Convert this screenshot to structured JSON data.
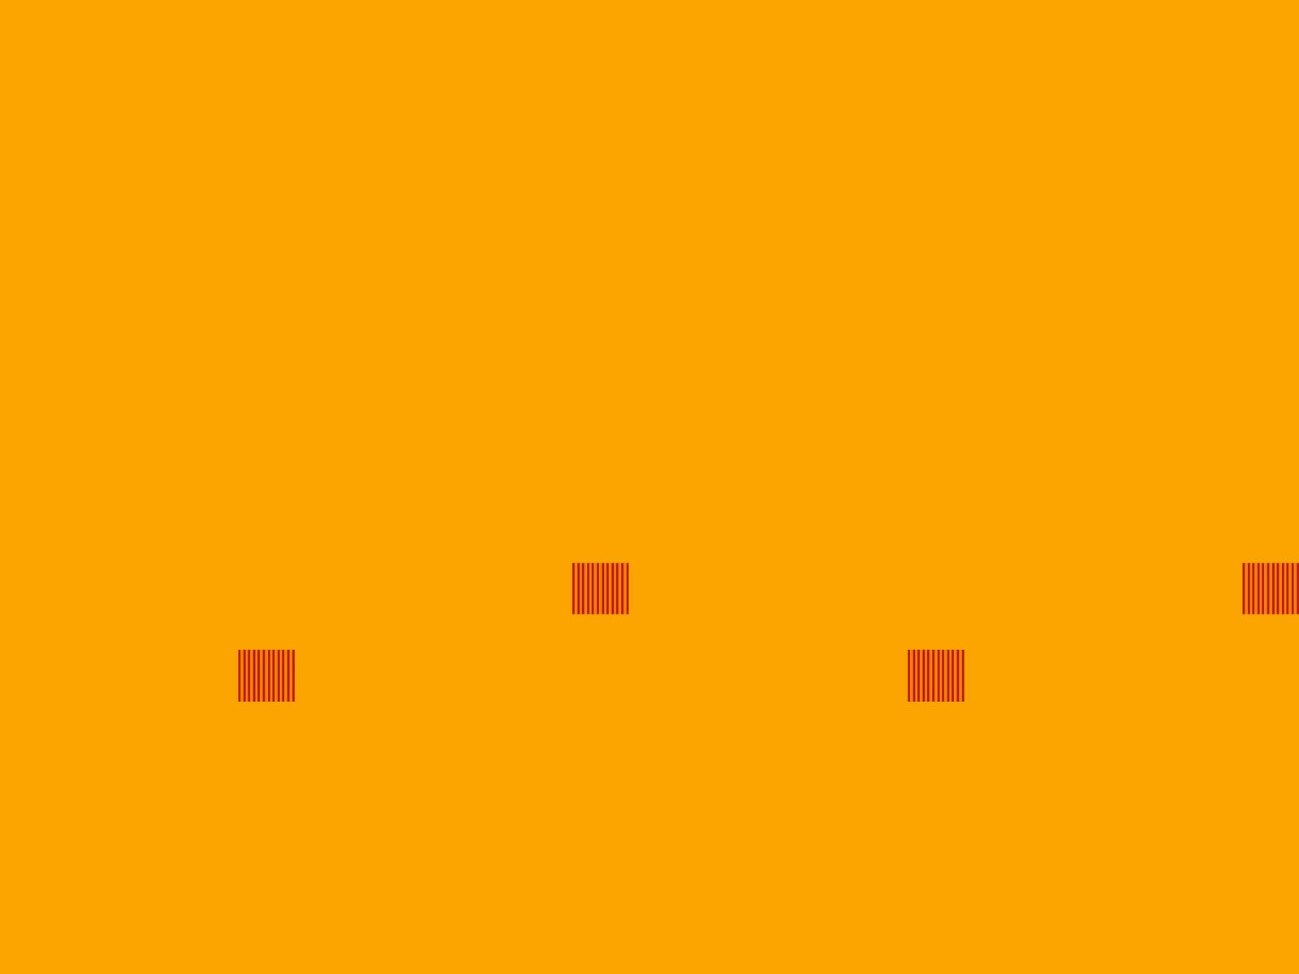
{
  "chart_data": {
    "type": "heatmap",
    "x": [
      0,
      321,
      324,
      328,
      331,
      334,
      337,
      341,
      344,
      347,
      350,
      354,
      357,
      361,
      364,
      367,
      370,
      374,
      377,
      380,
      383,
      387,
      390,
      394,
      397,
      771,
      774,
      778,
      781,
      784,
      787,
      791,
      794,
      797,
      800,
      804,
      807,
      811,
      814,
      817,
      820,
      824,
      827,
      830,
      833,
      837,
      840,
      844,
      847,
      1223,
      1226,
      1230,
      1233,
      1236,
      1239,
      1243,
      1246,
      1249,
      1252,
      1256,
      1259,
      1263,
      1266,
      1269,
      1272,
      1276,
      1279,
      1282,
      1285,
      1289,
      1292,
      1296,
      1299,
      1674,
      1677,
      1681,
      1684,
      1687,
      1690,
      1694,
      1697,
      1700,
      1703,
      1707,
      1710,
      1714,
      1717,
      1720,
      1723,
      1727,
      1730,
      1733,
      1736,
      1740,
      1743,
      1747,
      1750
    ],
    "y": [
      0,
      759,
      828,
      876,
      946,
      1313
    ],
    "z": [
      [
        0,
        0,
        0,
        0,
        0,
        0,
        0,
        0,
        0,
        0,
        0,
        0,
        0,
        0,
        0,
        0,
        0,
        0,
        0,
        0,
        0,
        0,
        0,
        0,
        0,
        0,
        0,
        0,
        0,
        0,
        0,
        0,
        0,
        0,
        0,
        0,
        0,
        0,
        0,
        0,
        0,
        0,
        0,
        0,
        0,
        0,
        0,
        0,
        0,
        0,
        0,
        0,
        0,
        0,
        0,
        0,
        0,
        0,
        0,
        0,
        0,
        0,
        0,
        0,
        0,
        0,
        0,
        0,
        0,
        0,
        0,
        0,
        0,
        0,
        0,
        0,
        0,
        0,
        0,
        0,
        0,
        0,
        0,
        0,
        0,
        0,
        0,
        0,
        0,
        0,
        0,
        0,
        0,
        0,
        0,
        0
      ],
      [
        0,
        0,
        0,
        0,
        0,
        0,
        0,
        0,
        0,
        0,
        0,
        0,
        0,
        0,
        0,
        0,
        0,
        0,
        0,
        0,
        0,
        0,
        0,
        0,
        0,
        1,
        0.3,
        1,
        0.3,
        1,
        0.3,
        1,
        0.3,
        1,
        0.3,
        1,
        0.3,
        1,
        0.3,
        1,
        0.3,
        1,
        0.3,
        1,
        0.3,
        1,
        0.3,
        1,
        0,
        0,
        0,
        0,
        0,
        0,
        0,
        0,
        0,
        0,
        0,
        0,
        0,
        0,
        0,
        0,
        0,
        0,
        0,
        0,
        0,
        0,
        0,
        0,
        0,
        1,
        0.3,
        1,
        0.3,
        1,
        0.3,
        1,
        0.3,
        1,
        0.3,
        1,
        0.3,
        1,
        0.3,
        1,
        0.3,
        1,
        0.3,
        1,
        0.3,
        1,
        0.3,
        1
      ],
      [
        0,
        0,
        0,
        0,
        0,
        0,
        0,
        0,
        0,
        0,
        0,
        0,
        0,
        0,
        0,
        0,
        0,
        0,
        0,
        0,
        0,
        0,
        0,
        0,
        0,
        0,
        0,
        0,
        0,
        0,
        0,
        0,
        0,
        0,
        0,
        0,
        0,
        0,
        0,
        0,
        0,
        0,
        0,
        0,
        0,
        0,
        0,
        0,
        0,
        0,
        0,
        0,
        0,
        0,
        0,
        0,
        0,
        0,
        0,
        0,
        0,
        0,
        0,
        0,
        0,
        0,
        0,
        0,
        0,
        0,
        0,
        0,
        0,
        0,
        0,
        0,
        0,
        0,
        0,
        0,
        0,
        0,
        0,
        0,
        0,
        0,
        0,
        0,
        0,
        0,
        0,
        0,
        0,
        0,
        0,
        0
      ],
      [
        0,
        1,
        0.3,
        1,
        0.3,
        1,
        0.3,
        1,
        0.3,
        1,
        0.3,
        1,
        0.3,
        1,
        0.3,
        1,
        0.3,
        1,
        0.3,
        1,
        0.3,
        1,
        0.3,
        1,
        0,
        0,
        0,
        0,
        0,
        0,
        0,
        0,
        0,
        0,
        0,
        0,
        0,
        0,
        0,
        0,
        0,
        0,
        0,
        0,
        0,
        0,
        0,
        0,
        0,
        1,
        0.3,
        1,
        0.3,
        1,
        0.3,
        1,
        0.3,
        1,
        0.3,
        1,
        0.3,
        1,
        0.3,
        1,
        0.3,
        1,
        0.3,
        1,
        0.3,
        1,
        0.3,
        1,
        0,
        0,
        0,
        0,
        0,
        0,
        0,
        0,
        0,
        0,
        0,
        0,
        0,
        0,
        0,
        0,
        0,
        0,
        0,
        0,
        0,
        0,
        0,
        0
      ],
      [
        0,
        0,
        0,
        0,
        0,
        0,
        0,
        0,
        0,
        0,
        0,
        0,
        0,
        0,
        0,
        0,
        0,
        0,
        0,
        0,
        0,
        0,
        0,
        0,
        0,
        0,
        0,
        0,
        0,
        0,
        0,
        0,
        0,
        0,
        0,
        0,
        0,
        0,
        0,
        0,
        0,
        0,
        0,
        0,
        0,
        0,
        0,
        0,
        0,
        0,
        0,
        0,
        0,
        0,
        0,
        0,
        0,
        0,
        0,
        0,
        0,
        0,
        0,
        0,
        0,
        0,
        0,
        0,
        0,
        0,
        0,
        0,
        0,
        0,
        0,
        0,
        0,
        0,
        0,
        0,
        0,
        0,
        0,
        0,
        0,
        0,
        0,
        0,
        0,
        0,
        0,
        0,
        0,
        0,
        0,
        0
      ]
    ],
    "zlim": [
      0,
      1
    ],
    "xlim": [
      0,
      1750
    ],
    "ylim": [
      1313,
      0
    ],
    "tick_labels": false,
    "grid": false
  }
}
